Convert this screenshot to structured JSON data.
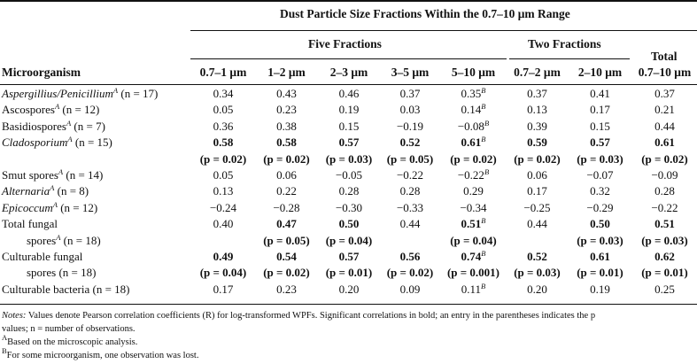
{
  "header": {
    "top_title": "Dust Particle Size Fractions Within the 0.7–10 μm Range",
    "five_fractions": "Five Fractions",
    "two_fractions": "Two Fractions",
    "total_line1": "Total",
    "microorganism": "Microorganism",
    "cols": [
      "0.7–1 μm",
      "1–2 μm",
      "2–3 μm",
      "3–5 μm",
      "5–10 μm",
      "0.7–2 μm",
      "2–10 μm",
      "0.7–10 μm"
    ]
  },
  "rows": [
    {
      "name": "Aspergillius/Penicillium",
      "italic": true,
      "sup": "A",
      "n": " (n = 17)",
      "cells": [
        "0.34",
        "0.43",
        "0.46",
        "0.37",
        "0.35",
        "0.37",
        "0.41",
        "0.37"
      ],
      "cell_sup": [
        "",
        "",
        "",
        "",
        "B",
        "",
        "",
        ""
      ],
      "bold": [
        false,
        false,
        false,
        false,
        false,
        false,
        false,
        false
      ]
    },
    {
      "name": "Ascospores",
      "italic": false,
      "sup": "A",
      "n": " (n = 12)",
      "cells": [
        "0.05",
        "0.23",
        "0.19",
        "0.03",
        "0.14",
        "0.13",
        "0.17",
        "0.21"
      ],
      "cell_sup": [
        "",
        "",
        "",
        "",
        "B",
        "",
        "",
        ""
      ],
      "bold": [
        false,
        false,
        false,
        false,
        false,
        false,
        false,
        false
      ]
    },
    {
      "name": "Basidiospores",
      "italic": false,
      "sup": "A",
      "n": " (n = 7)",
      "cells": [
        "0.36",
        "0.38",
        "0.15",
        "−0.19",
        "−0.08",
        "0.39",
        "0.15",
        "0.44"
      ],
      "cell_sup": [
        "",
        "",
        "",
        "",
        "B",
        "",
        "",
        ""
      ],
      "bold": [
        false,
        false,
        false,
        false,
        false,
        false,
        false,
        false
      ]
    },
    {
      "name": "Cladosporium",
      "italic": true,
      "sup": "A",
      "n": " (n = 15)",
      "cells": [
        "0.58",
        "0.58",
        "0.57",
        "0.52",
        "0.61",
        "0.59",
        "0.57",
        "0.61"
      ],
      "cell_sup": [
        "",
        "",
        "",
        "",
        "B",
        "",
        "",
        ""
      ],
      "bold": [
        true,
        true,
        true,
        true,
        true,
        true,
        true,
        true
      ]
    },
    {
      "name": "",
      "italic": false,
      "sup": "",
      "n": "",
      "cells": [
        "(p = 0.02)",
        "(p = 0.02)",
        "(p = 0.03)",
        "(p = 0.05)",
        "(p = 0.02)",
        "(p = 0.02)",
        "(p = 0.03)",
        "(p = 0.02)"
      ],
      "cell_sup": [
        "",
        "",
        "",
        "",
        "",
        "",
        "",
        ""
      ],
      "bold": [
        true,
        true,
        true,
        true,
        true,
        true,
        true,
        true
      ]
    },
    {
      "name": "Smut spores",
      "italic": false,
      "sup": "A",
      "n": " (n = 14)",
      "cells": [
        "0.05",
        "0.06",
        "−0.05",
        "−0.22",
        "−0.22",
        "0.06",
        "−0.07",
        "−0.09"
      ],
      "cell_sup": [
        "",
        "",
        "",
        "",
        "B",
        "",
        "",
        ""
      ],
      "bold": [
        false,
        false,
        false,
        false,
        false,
        false,
        false,
        false
      ]
    },
    {
      "name": "Alternaria",
      "italic": true,
      "sup": "A",
      "n": " (n = 8)",
      "cells": [
        "0.13",
        "0.22",
        "0.28",
        "0.28",
        "0.29",
        "0.17",
        "0.32",
        "0.28"
      ],
      "cell_sup": [
        "",
        "",
        "",
        "",
        "",
        "",
        "",
        ""
      ],
      "bold": [
        false,
        false,
        false,
        false,
        false,
        false,
        false,
        false
      ]
    },
    {
      "name": "Epicoccum",
      "italic": true,
      "sup": "A",
      "n": " (n = 12)",
      "cells": [
        "−0.24",
        "−0.28",
        "−0.30",
        "−0.33",
        "−0.34",
        "−0.25",
        "−0.29",
        "−0.22"
      ],
      "cell_sup": [
        "",
        "",
        "",
        "",
        "",
        "",
        "",
        ""
      ],
      "bold": [
        false,
        false,
        false,
        false,
        false,
        false,
        false,
        false
      ]
    },
    {
      "name": "Total fungal",
      "italic": false,
      "sup": "",
      "n": "",
      "cells": [
        "0.40",
        "0.47",
        "0.50",
        "0.44",
        "0.51",
        "0.44",
        "0.50",
        "0.51"
      ],
      "cell_sup": [
        "",
        "",
        "",
        "",
        "B",
        "",
        "",
        ""
      ],
      "bold": [
        false,
        true,
        true,
        false,
        true,
        false,
        true,
        true
      ]
    },
    {
      "name": "    spores",
      "italic": false,
      "sup": "A",
      "n": " (n = 18)",
      "cells": [
        "",
        "(p = 0.05)",
        "(p = 0.04)",
        "",
        "(p = 0.04)",
        "",
        "(p = 0.03)",
        "(p = 0.03)"
      ],
      "cell_sup": [
        "",
        "",
        "",
        "",
        "",
        "",
        "",
        ""
      ],
      "bold": [
        false,
        true,
        true,
        false,
        true,
        false,
        true,
        true
      ]
    },
    {
      "name": "Culturable fungal",
      "italic": false,
      "sup": "",
      "n": "",
      "cells": [
        "0.49",
        "0.54",
        "0.57",
        "0.56",
        "0.74",
        "0.52",
        "0.61",
        "0.62"
      ],
      "cell_sup": [
        "",
        "",
        "",
        "",
        "B",
        "",
        "",
        ""
      ],
      "bold": [
        true,
        true,
        true,
        true,
        true,
        true,
        true,
        true
      ]
    },
    {
      "name": "    spores",
      "italic": false,
      "sup": "",
      "n": " (n = 18)",
      "cells": [
        "(p = 0.04)",
        "(p = 0.02)",
        "(p = 0.01)",
        "(p = 0.02)",
        "(p = 0.001)",
        "(p = 0.03)",
        "(p = 0.01)",
        "(p = 0.01)"
      ],
      "cell_sup": [
        "",
        "",
        "",
        "",
        "",
        "",
        "",
        ""
      ],
      "bold": [
        true,
        true,
        true,
        true,
        true,
        true,
        true,
        true
      ]
    },
    {
      "name": "Culturable bacteria",
      "italic": false,
      "sup": "",
      "n": " (n = 18)",
      "cells": [
        "0.17",
        "0.23",
        "0.20",
        "0.09",
        "0.11",
        "0.20",
        "0.19",
        "0.25"
      ],
      "cell_sup": [
        "",
        "",
        "",
        "",
        "B",
        "",
        "",
        ""
      ],
      "bold": [
        false,
        false,
        false,
        false,
        false,
        false,
        false,
        false
      ]
    }
  ],
  "notes": {
    "label": "Notes:",
    "line1": " Values denote Pearson correlation coefficients (R) for log-transformed WPFs. Significant correlations in bold; an entry in the parentheses indicates the p",
    "line2": "values; n = number of observations.",
    "fnA_mark": "A",
    "fnA": "Based on the microscopic analysis.",
    "fnB_mark": "B",
    "fnB": "For some microorganism, one observation was lost."
  }
}
